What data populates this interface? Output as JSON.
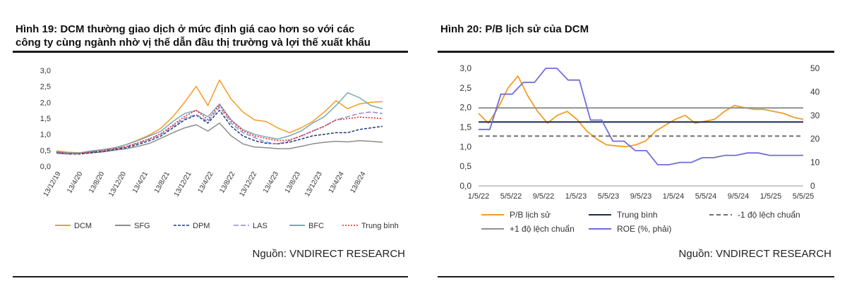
{
  "fig19": {
    "title_line1": "Hình 19: DCM thường giao dịch ở mức định giá cao hơn so với các",
    "title_line2": "công ty cùng ngành nhờ vị thế dẫn đầu thị trường và lợi thế xuất khẩu",
    "source": "Nguồn: VNDIRECT RESEARCH"
  },
  "fig20": {
    "title": "Hình 20: P/B lịch sử của DCM",
    "source": "Nguồn: VNDIRECT RESEARCH"
  },
  "chart_data": [
    {
      "type": "line",
      "x_tick_labels": [
        "13/12/19",
        "13/4/20",
        "13/8/20",
        "13/12/20",
        "13/4/21",
        "13/8/21",
        "13/12/21",
        "13/4/22",
        "13/8/22",
        "13/12/22",
        "13/4/23",
        "13/8/23",
        "13/12/23",
        "13/4/24",
        "13/8/24"
      ],
      "y_tick_labels": [
        "0,0",
        "0,5",
        "1,0",
        "1,5",
        "2,0",
        "2,5",
        "3,0"
      ],
      "ylim": [
        0,
        3.0
      ],
      "legend": "bottom",
      "series": [
        {
          "name": "DCM",
          "color": "#F39C24",
          "dash": "solid",
          "values": [
            0.48,
            0.44,
            0.42,
            0.47,
            0.52,
            0.58,
            0.68,
            0.82,
            0.98,
            1.2,
            1.55,
            2.0,
            2.5,
            1.9,
            2.7,
            2.1,
            1.7,
            1.45,
            1.4,
            1.2,
            1.05,
            1.2,
            1.4,
            1.7,
            2.05,
            1.8,
            1.95,
            2.0,
            2.02
          ]
        },
        {
          "name": "SFG",
          "color": "#8C8C8C",
          "dash": "solid",
          "values": [
            0.42,
            0.4,
            0.4,
            0.42,
            0.45,
            0.5,
            0.55,
            0.62,
            0.72,
            0.88,
            1.05,
            1.2,
            1.3,
            1.1,
            1.35,
            0.95,
            0.7,
            0.6,
            0.58,
            0.55,
            0.55,
            0.62,
            0.7,
            0.75,
            0.78,
            0.76,
            0.8,
            0.78,
            0.75
          ]
        },
        {
          "name": "DPM",
          "color": "#1F3A6E",
          "dash": "dash",
          "values": [
            0.42,
            0.38,
            0.38,
            0.42,
            0.46,
            0.52,
            0.58,
            0.68,
            0.8,
            0.95,
            1.2,
            1.45,
            1.6,
            1.35,
            1.75,
            1.25,
            0.95,
            0.8,
            0.72,
            0.7,
            0.75,
            0.85,
            0.95,
            1.0,
            1.05,
            1.05,
            1.15,
            1.2,
            1.25
          ]
        },
        {
          "name": "LAS",
          "color": "#8E8AD8",
          "dash": "longdash",
          "values": [
            0.4,
            0.38,
            0.4,
            0.45,
            0.5,
            0.55,
            0.62,
            0.72,
            0.85,
            1.0,
            1.25,
            1.5,
            1.62,
            1.4,
            1.85,
            1.35,
            1.05,
            0.9,
            0.75,
            0.7,
            0.8,
            0.95,
            1.1,
            1.25,
            1.45,
            1.55,
            1.65,
            1.7,
            1.65
          ]
        },
        {
          "name": "BFC",
          "color": "#7FA7B5",
          "dash": "solid",
          "values": [
            0.45,
            0.42,
            0.42,
            0.48,
            0.52,
            0.58,
            0.68,
            0.8,
            0.95,
            1.1,
            1.4,
            1.65,
            1.75,
            1.55,
            1.95,
            1.45,
            1.15,
            1.0,
            0.92,
            0.85,
            0.95,
            1.1,
            1.35,
            1.55,
            1.9,
            2.3,
            2.15,
            1.9,
            1.8
          ]
        },
        {
          "name": "Trung bình",
          "color": "#E8211F",
          "dash": "dot",
          "values": [
            0.44,
            0.4,
            0.4,
            0.45,
            0.49,
            0.55,
            0.62,
            0.73,
            0.86,
            1.03,
            1.29,
            1.56,
            1.75,
            1.46,
            1.92,
            1.42,
            1.11,
            0.95,
            0.87,
            0.8,
            0.82,
            0.94,
            1.1,
            1.25,
            1.45,
            1.49,
            1.54,
            1.52,
            1.49
          ]
        }
      ]
    },
    {
      "type": "line",
      "x_tick_labels": [
        "1/5/22",
        "5/5/22",
        "9/5/22",
        "1/5/23",
        "5/5/23",
        "9/5/23",
        "1/5/24",
        "5/5/24",
        "9/5/24",
        "1/5/25",
        "5/5/25"
      ],
      "y_left_tick_labels": [
        "0,0",
        "0,5",
        "1,0",
        "1,5",
        "2,0",
        "2,5",
        "3,0"
      ],
      "y_right_tick_labels": [
        "0",
        "10",
        "20",
        "30",
        "40",
        "50"
      ],
      "ylim_left": [
        0,
        3.0
      ],
      "ylim_right": [
        0,
        50
      ],
      "legend": "bottom",
      "series": [
        {
          "name": "P/B lịch sử",
          "color": "#F39C24",
          "axis": "left",
          "dash": "solid",
          "values": [
            1.85,
            1.6,
            2.0,
            2.5,
            2.8,
            2.3,
            1.9,
            1.6,
            1.8,
            1.9,
            1.7,
            1.4,
            1.2,
            1.05,
            1.02,
            1.0,
            1.05,
            1.15,
            1.4,
            1.55,
            1.7,
            1.8,
            1.6,
            1.65,
            1.7,
            1.9,
            2.05,
            2.0,
            1.95,
            1.95,
            1.9,
            1.85,
            1.75,
            1.7
          ]
        },
        {
          "name": "Trung bình",
          "color": "#1F2A55",
          "axis": "left",
          "dash": "solid",
          "values": [
            1.63,
            1.63
          ]
        },
        {
          "name": "-1 độ lệch chuẩn",
          "color": "#707070",
          "axis": "left",
          "dash": "dash",
          "values": [
            1.27,
            1.27
          ]
        },
        {
          "name": "+1 độ lệch chuẩn",
          "color": "#909090",
          "axis": "left",
          "dash": "solid",
          "values": [
            1.99,
            1.99
          ]
        },
        {
          "name": "ROE (%, phải)",
          "color": "#6F6DD8",
          "axis": "right",
          "dash": "step",
          "values": [
            24,
            24,
            39,
            39,
            44,
            44,
            50,
            50,
            45,
            45,
            28,
            28,
            19,
            19,
            15,
            15,
            9,
            9,
            10,
            10,
            12,
            12,
            13,
            13,
            14,
            14,
            13,
            13,
            13,
            13
          ]
        }
      ]
    }
  ]
}
